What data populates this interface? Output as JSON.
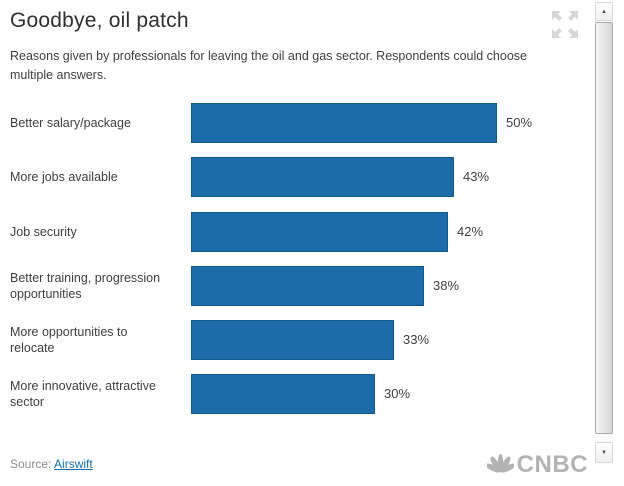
{
  "header": {
    "title": "Goodbye, oil patch",
    "subtitle": "Reasons given by professionals for leaving the oil and gas sector. Respondents could choose multiple answers."
  },
  "chart_data": {
    "type": "bar",
    "orientation": "horizontal",
    "categories": [
      "Better salary/package",
      "More jobs available",
      "Job security",
      "Better training, progression opportunities",
      "More opportunities to relocate",
      "More innovative, attractive sector"
    ],
    "values": [
      50,
      43,
      42,
      38,
      33,
      30
    ],
    "value_suffix": "%",
    "xlim": [
      0,
      50
    ],
    "grid": "off",
    "legend": "none",
    "bar_color": "#1b6ca8",
    "bar_border_color": "#11598c",
    "title": "Goodbye, oil patch",
    "xlabel": "",
    "ylabel": ""
  },
  "footer": {
    "source_label": "Source:",
    "source_link": "Airswift",
    "logo_text": "CNBC"
  },
  "icons": {
    "expand": "expand-arrows-icon",
    "scroll_up": "▲",
    "scroll_down": "▼",
    "peacock": "cnbc-peacock-icon"
  },
  "colors": {
    "bar": "#1b6ca8",
    "bar_border": "#11598c",
    "link": "#1a70ad",
    "logo_gray": "#b3b3b3",
    "text": "#3f3f3f",
    "muted": "#8e8e8e"
  }
}
